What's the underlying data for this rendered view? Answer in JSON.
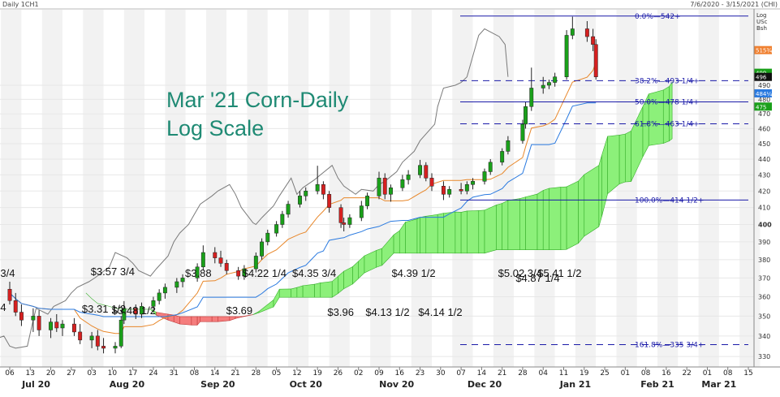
{
  "header": {
    "left": "Daily 1CH1",
    "right": "7/6/2020 - 3/15/2021 (CHI)"
  },
  "scale_labels": [
    "Log",
    "USc",
    "Bsh"
  ],
  "title_lines": [
    "Mar '21 Corn-Daily",
    "Log Scale"
  ],
  "chart_data": {
    "type": "candlestick",
    "log_scale": true,
    "ylim": [
      325,
      547
    ],
    "x_date_range": [
      "2020-07-06",
      "2021-03-15"
    ],
    "y_ticks": [
      330,
      340,
      350,
      360,
      370,
      380,
      390,
      400,
      410,
      420,
      430,
      440,
      450,
      460,
      470,
      480,
      490
    ],
    "x_day_labels": [
      "06",
      "13",
      "20",
      "27",
      "03",
      "10",
      "17",
      "24",
      "31",
      "08",
      "14",
      "21",
      "28",
      "05",
      "12",
      "19",
      "26",
      "02",
      "09",
      "16",
      "23",
      "30",
      "07",
      "14",
      "21",
      "28",
      "04",
      "11",
      "19",
      "25",
      "01",
      "08",
      "16",
      "22",
      "01",
      "08",
      "15"
    ],
    "x_month_labels": [
      "Jul 20",
      "Aug 20",
      "Sep 20",
      "Oct 20",
      "Nov 20",
      "Dec 20",
      "Jan 21",
      "Feb 21",
      "Mar 21"
    ],
    "fib_levels": [
      {
        "label": "0.0%",
        "value": "542+",
        "price": 542
      },
      {
        "label": "38.2%",
        "value": "493 1/4+",
        "price": 493.25
      },
      {
        "label": "50.0%",
        "value": "478 1/4+",
        "price": 478.25
      },
      {
        "label": "61.8%",
        "value": "463 1/4+",
        "price": 463.25
      },
      {
        "label": "100.0%",
        "value": "414 1/2+",
        "price": 414.5
      },
      {
        "label": "161.8%",
        "value": "335 3/4+",
        "price": 335.75
      }
    ],
    "annotations": [
      {
        "text": "3 3/4",
        "date": "2020-07-06"
      },
      {
        "text": "4",
        "date": "2020-07-06"
      },
      {
        "text": "$3.57 3/4",
        "date": "2020-08-14"
      },
      {
        "text": "$3.48 1/2",
        "date": "2020-08-19"
      },
      {
        "text": "$3.31 1/2",
        "date": "2020-08-11"
      },
      {
        "text": "$3.88",
        "date": "2020-09-10"
      },
      {
        "text": "$3.69",
        "date": "2020-09-24"
      },
      {
        "text": "$4.22 1/4",
        "date": "2020-10-07"
      },
      {
        "text": "$4.35 3/4",
        "date": "2020-10-19"
      },
      {
        "text": "$3.96",
        "date": "2020-10-28"
      },
      {
        "text": "$4.13 1/2",
        "date": "2020-11-13"
      },
      {
        "text": "$4.39 1/2",
        "date": "2020-11-23"
      },
      {
        "text": "$4.14 1/2",
        "date": "2020-12-01"
      },
      {
        "text": "$5.02 3/4",
        "date": "2020-12-31"
      },
      {
        "text": "$4.87 1/4",
        "date": "2021-01-06"
      },
      {
        "text": "$5.41 1/2",
        "date": "2021-01-14"
      }
    ],
    "right_tags": [
      {
        "text": "515¾",
        "price": 515.75,
        "color": "#f08030"
      },
      {
        "text": "499",
        "price": 499,
        "color": "#1aa01a"
      },
      {
        "text": "496",
        "price": 496,
        "color": "#111111"
      },
      {
        "text": "484¼",
        "price": 484.25,
        "color": "#2a7ae0"
      },
      {
        "text": "475",
        "price": 475,
        "color": "#1aa01a"
      }
    ],
    "candles": [
      {
        "d": "2020-07-06",
        "o": 364,
        "h": 368,
        "l": 356,
        "c": 358
      },
      {
        "d": "2020-07-08",
        "o": 358,
        "h": 362,
        "l": 350,
        "c": 352
      },
      {
        "d": "2020-07-10",
        "o": 352,
        "h": 356,
        "l": 345,
        "c": 348
      },
      {
        "d": "2020-07-14",
        "o": 348,
        "h": 354,
        "l": 342,
        "c": 350
      },
      {
        "d": "2020-07-16",
        "o": 350,
        "h": 353,
        "l": 340,
        "c": 343
      },
      {
        "d": "2020-07-20",
        "o": 343,
        "h": 349,
        "l": 339,
        "c": 347
      },
      {
        "d": "2020-07-22",
        "o": 347,
        "h": 351,
        "l": 342,
        "c": 344
      },
      {
        "d": "2020-07-24",
        "o": 344,
        "h": 348,
        "l": 340,
        "c": 346
      },
      {
        "d": "2020-07-28",
        "o": 346,
        "h": 349,
        "l": 340,
        "c": 342
      },
      {
        "d": "2020-07-30",
        "o": 342,
        "h": 346,
        "l": 336,
        "c": 338
      },
      {
        "d": "2020-08-03",
        "o": 338,
        "h": 342,
        "l": 334,
        "c": 340
      },
      {
        "d": "2020-08-05",
        "o": 340,
        "h": 343,
        "l": 333,
        "c": 335
      },
      {
        "d": "2020-08-07",
        "o": 335,
        "h": 339,
        "l": 331.5,
        "c": 334
      },
      {
        "d": "2020-08-11",
        "o": 334,
        "h": 337,
        "l": 331.5,
        "c": 335
      },
      {
        "d": "2020-08-13",
        "o": 335,
        "h": 350,
        "l": 334,
        "c": 348
      },
      {
        "d": "2020-08-14",
        "o": 348,
        "h": 357.75,
        "l": 346,
        "c": 354
      },
      {
        "d": "2020-08-18",
        "o": 354,
        "h": 356,
        "l": 348.5,
        "c": 351
      },
      {
        "d": "2020-08-20",
        "o": 351,
        "h": 357,
        "l": 349,
        "c": 355
      },
      {
        "d": "2020-08-24",
        "o": 355,
        "h": 360,
        "l": 352,
        "c": 358
      },
      {
        "d": "2020-08-26",
        "o": 358,
        "h": 364,
        "l": 356,
        "c": 362
      },
      {
        "d": "2020-08-28",
        "o": 362,
        "h": 367,
        "l": 359,
        "c": 365
      },
      {
        "d": "2020-09-01",
        "o": 365,
        "h": 370,
        "l": 362,
        "c": 368
      },
      {
        "d": "2020-09-03",
        "o": 368,
        "h": 372,
        "l": 365,
        "c": 370
      },
      {
        "d": "2020-09-08",
        "o": 370,
        "h": 378,
        "l": 368,
        "c": 376
      },
      {
        "d": "2020-09-10",
        "o": 376,
        "h": 388,
        "l": 374,
        "c": 384
      },
      {
        "d": "2020-09-14",
        "o": 384,
        "h": 387,
        "l": 378,
        "c": 381
      },
      {
        "d": "2020-09-16",
        "o": 381,
        "h": 385,
        "l": 376,
        "c": 378
      },
      {
        "d": "2020-09-18",
        "o": 378,
        "h": 380,
        "l": 372,
        "c": 374
      },
      {
        "d": "2020-09-22",
        "o": 374,
        "h": 376,
        "l": 369,
        "c": 371
      },
      {
        "d": "2020-09-24",
        "o": 371,
        "h": 377,
        "l": 369,
        "c": 375
      },
      {
        "d": "2020-09-28",
        "o": 375,
        "h": 384,
        "l": 373,
        "c": 382
      },
      {
        "d": "2020-09-30",
        "o": 382,
        "h": 392,
        "l": 380,
        "c": 390
      },
      {
        "d": "2020-10-02",
        "o": 390,
        "h": 397,
        "l": 388,
        "c": 395
      },
      {
        "d": "2020-10-05",
        "o": 395,
        "h": 402,
        "l": 393,
        "c": 400
      },
      {
        "d": "2020-10-07",
        "o": 400,
        "h": 408,
        "l": 398,
        "c": 406
      },
      {
        "d": "2020-10-09",
        "o": 406,
        "h": 414,
        "l": 404,
        "c": 412
      },
      {
        "d": "2020-10-13",
        "o": 412,
        "h": 420,
        "l": 410,
        "c": 417
      },
      {
        "d": "2020-10-15",
        "o": 417,
        "h": 422.25,
        "l": 414,
        "c": 420
      },
      {
        "d": "2020-10-19",
        "o": 420,
        "h": 435.75,
        "l": 418,
        "c": 424
      },
      {
        "d": "2020-10-21",
        "o": 424,
        "h": 426,
        "l": 415,
        "c": 418
      },
      {
        "d": "2020-10-23",
        "o": 418,
        "h": 420,
        "l": 407,
        "c": 410
      },
      {
        "d": "2020-10-27",
        "o": 410,
        "h": 412,
        "l": 398,
        "c": 401
      },
      {
        "d": "2020-10-28",
        "o": 401,
        "h": 404,
        "l": 396,
        "c": 400
      },
      {
        "d": "2020-10-30",
        "o": 400,
        "h": 406,
        "l": 398,
        "c": 404
      },
      {
        "d": "2020-11-03",
        "o": 404,
        "h": 414,
        "l": 402,
        "c": 411
      },
      {
        "d": "2020-11-05",
        "o": 411,
        "h": 419,
        "l": 409,
        "c": 417
      },
      {
        "d": "2020-11-09",
        "o": 417,
        "h": 432,
        "l": 415,
        "c": 428
      },
      {
        "d": "2020-11-11",
        "o": 428,
        "h": 431,
        "l": 415,
        "c": 418
      },
      {
        "d": "2020-11-13",
        "o": 418,
        "h": 424,
        "l": 413.5,
        "c": 422
      },
      {
        "d": "2020-11-17",
        "o": 422,
        "h": 430,
        "l": 420,
        "c": 427
      },
      {
        "d": "2020-11-19",
        "o": 427,
        "h": 433,
        "l": 424,
        "c": 430
      },
      {
        "d": "2020-11-23",
        "o": 430,
        "h": 439.5,
        "l": 428,
        "c": 436
      },
      {
        "d": "2020-11-25",
        "o": 436,
        "h": 438,
        "l": 426,
        "c": 428
      },
      {
        "d": "2020-11-27",
        "o": 428,
        "h": 431,
        "l": 420,
        "c": 423
      },
      {
        "d": "2020-12-01",
        "o": 423,
        "h": 426,
        "l": 414.5,
        "c": 418
      },
      {
        "d": "2020-12-03",
        "o": 418,
        "h": 423,
        "l": 416,
        "c": 421
      },
      {
        "d": "2020-12-07",
        "o": 421,
        "h": 425,
        "l": 418,
        "c": 420
      },
      {
        "d": "2020-12-09",
        "o": 420,
        "h": 426,
        "l": 418,
        "c": 424
      },
      {
        "d": "2020-12-11",
        "o": 424,
        "h": 428,
        "l": 421,
        "c": 426
      },
      {
        "d": "2020-12-15",
        "o": 426,
        "h": 434,
        "l": 424,
        "c": 432
      },
      {
        "d": "2020-12-17",
        "o": 432,
        "h": 440,
        "l": 430,
        "c": 438
      },
      {
        "d": "2020-12-21",
        "o": 438,
        "h": 447,
        "l": 436,
        "c": 445
      },
      {
        "d": "2020-12-23",
        "o": 445,
        "h": 455,
        "l": 443,
        "c": 452
      },
      {
        "d": "2020-12-28",
        "o": 452,
        "h": 466,
        "l": 450,
        "c": 463
      },
      {
        "d": "2020-12-29",
        "o": 463,
        "h": 478,
        "l": 460,
        "c": 475
      },
      {
        "d": "2020-12-31",
        "o": 475,
        "h": 502.75,
        "l": 472,
        "c": 488
      },
      {
        "d": "2021-01-04",
        "o": 488,
        "h": 496,
        "l": 484,
        "c": 490
      },
      {
        "d": "2021-01-06",
        "o": 490,
        "h": 494,
        "l": 487.25,
        "c": 492
      },
      {
        "d": "2021-01-08",
        "o": 492,
        "h": 499,
        "l": 489,
        "c": 496
      },
      {
        "d": "2021-01-12",
        "o": 496,
        "h": 531,
        "l": 494,
        "c": 527
      },
      {
        "d": "2021-01-14",
        "o": 527,
        "h": 541.5,
        "l": 524,
        "c": 532
      },
      {
        "d": "2021-01-19",
        "o": 532,
        "h": 538,
        "l": 522,
        "c": 526
      },
      {
        "d": "2021-01-21",
        "o": 526,
        "h": 532,
        "l": 515,
        "c": 520
      },
      {
        "d": "2021-01-22",
        "o": 520,
        "h": 524,
        "l": 494,
        "c": 496
      }
    ]
  }
}
